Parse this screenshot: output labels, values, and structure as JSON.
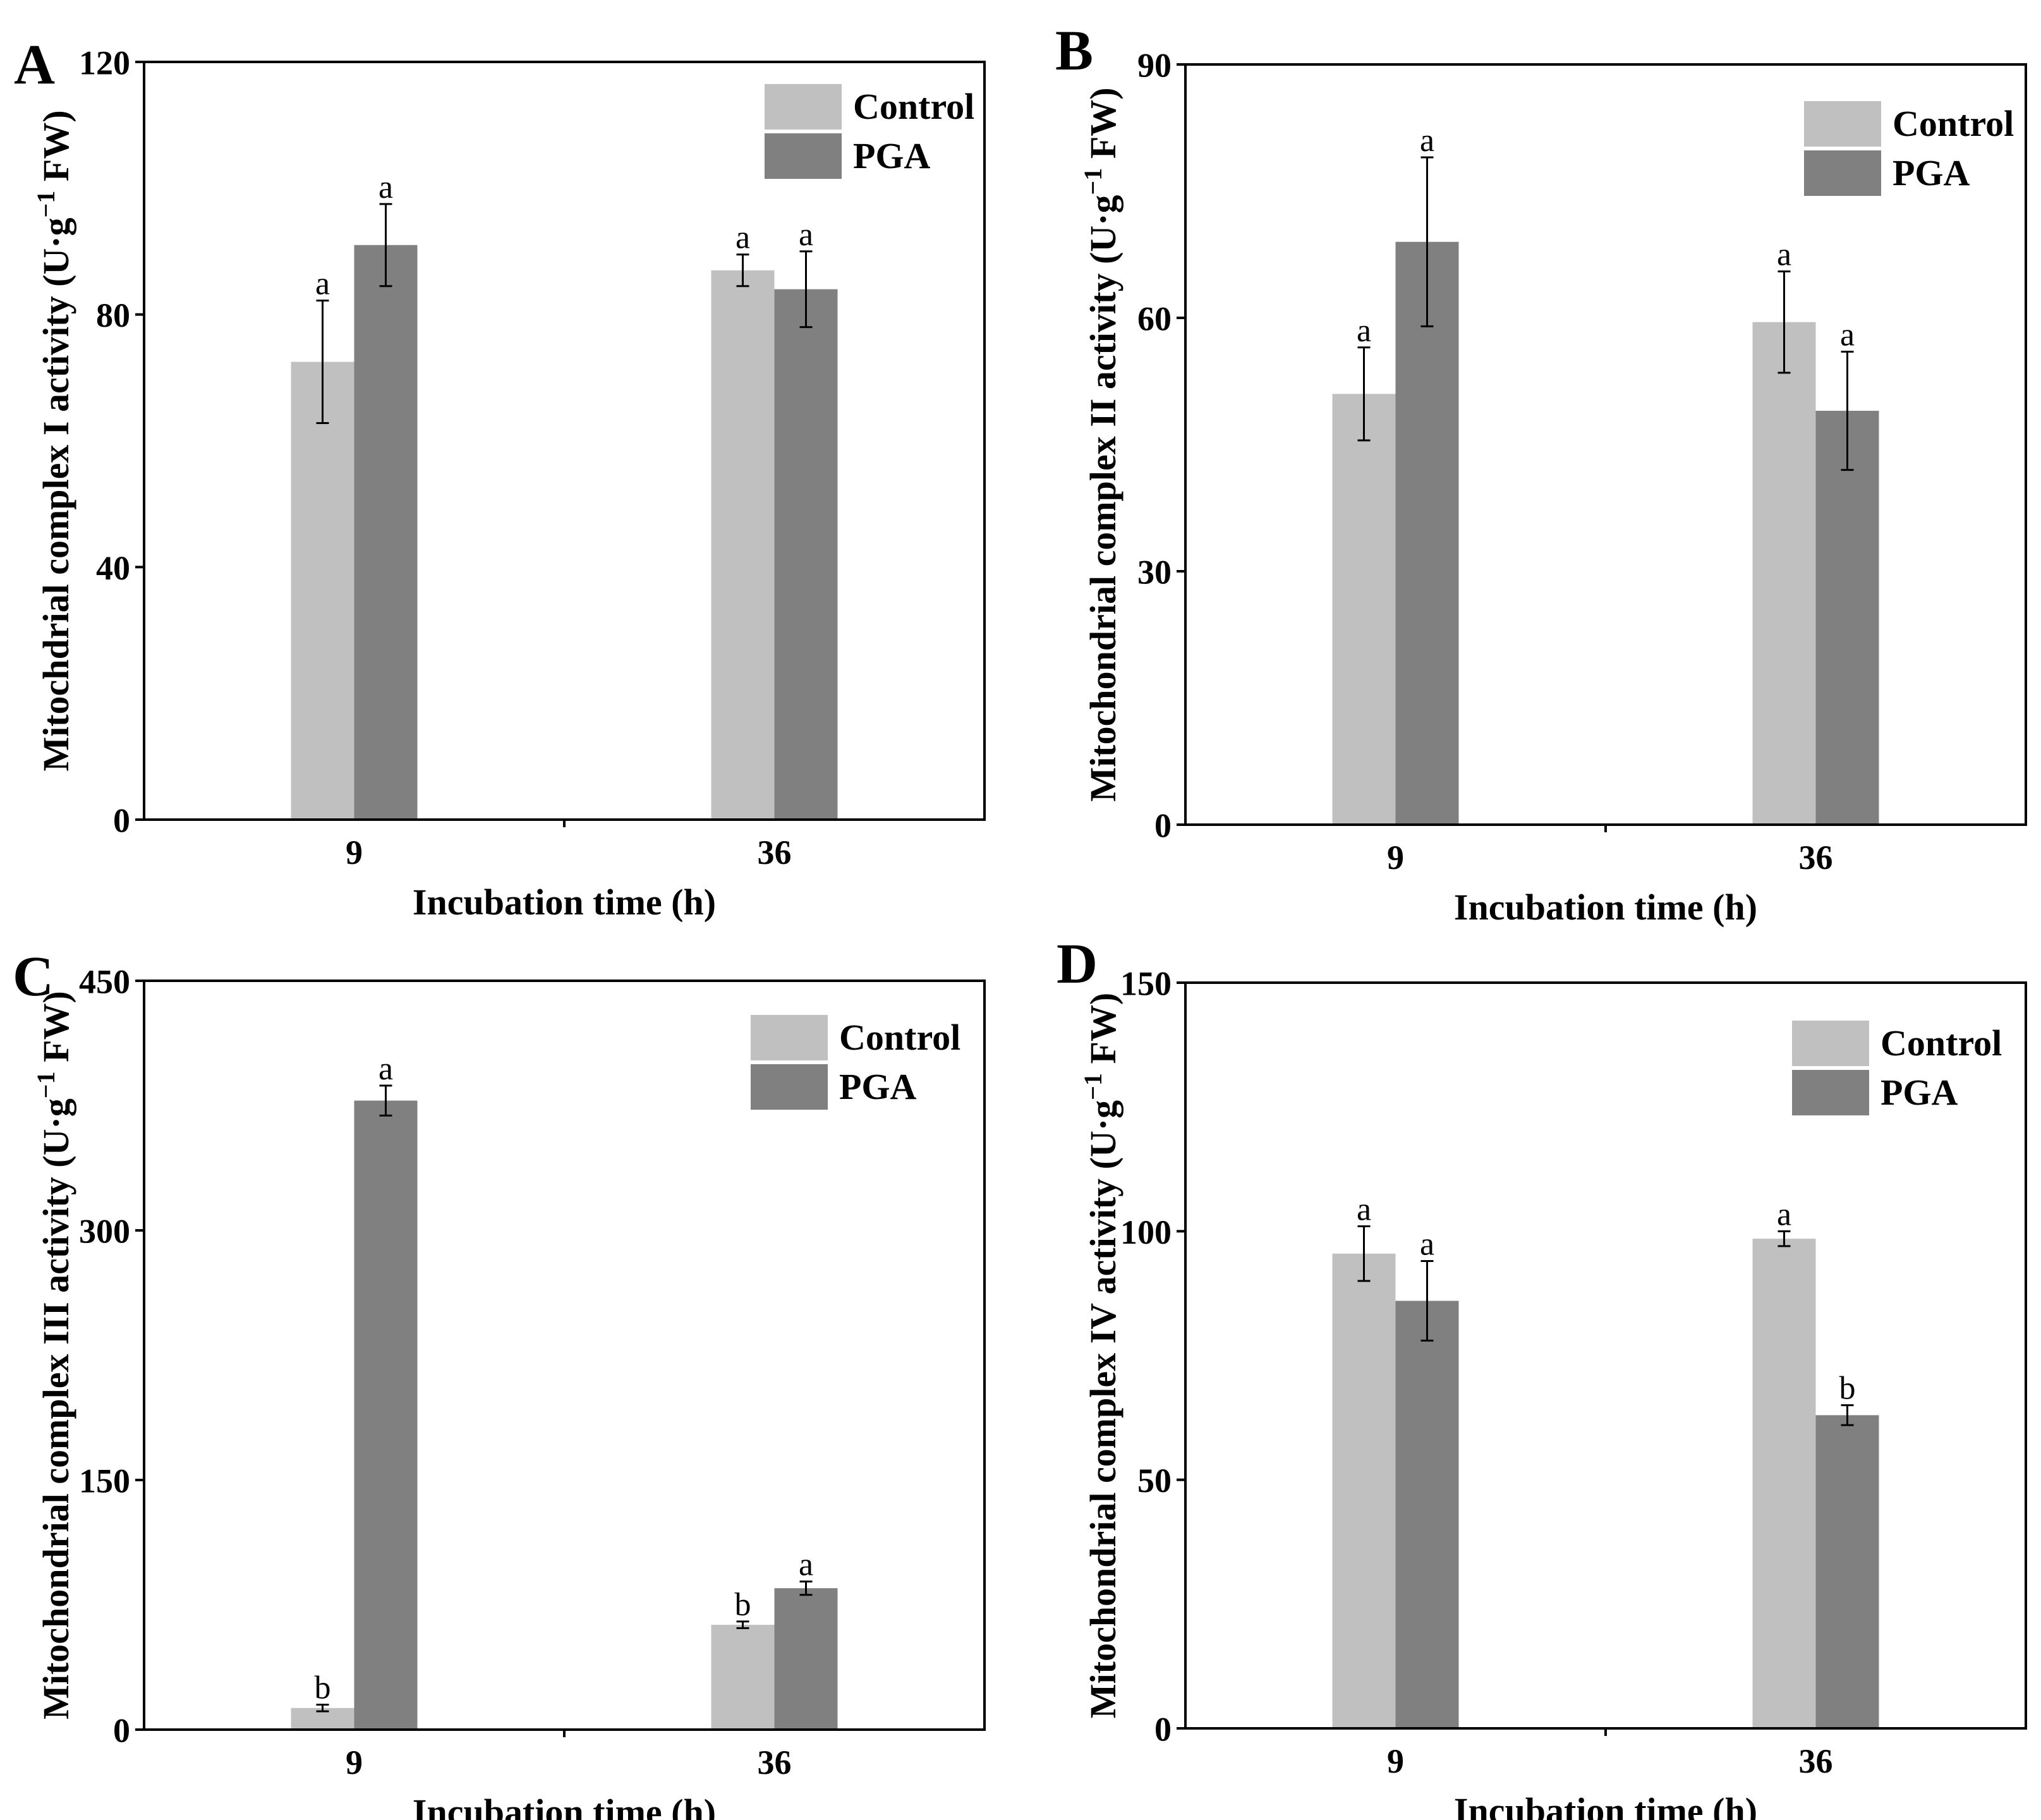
{
  "figure": {
    "colors": {
      "control": "#c0c0c0",
      "pga": "#808080",
      "axis": "#000000"
    }
  },
  "chart_data": [
    {
      "type": "bar",
      "panel": "A",
      "categories": [
        "9",
        "36"
      ],
      "series": [
        {
          "name": "Control",
          "values": [
            72.5,
            87
          ],
          "errors": [
            9.7,
            2.5
          ],
          "letters": [
            "a",
            "a"
          ]
        },
        {
          "name": "PGA",
          "values": [
            91,
            84
          ],
          "errors": [
            6.5,
            6
          ],
          "letters": [
            "a",
            "a"
          ]
        }
      ],
      "xlabel": "Incubation time (h)",
      "ylabel_main": "Mitochdrial complex I activity (U·g",
      "ylabel_sup": "−1",
      "ylabel_end": " FW)",
      "ylim": [
        0,
        120
      ],
      "yticks": [
        0,
        40,
        80,
        120
      ],
      "legend": [
        "Control",
        "PGA"
      ]
    },
    {
      "type": "bar",
      "panel": "B",
      "categories": [
        "9",
        "36"
      ],
      "series": [
        {
          "name": "Control",
          "values": [
            51,
            59.5
          ],
          "errors": [
            5.5,
            6
          ],
          "letters": [
            "a",
            "a"
          ]
        },
        {
          "name": "PGA",
          "values": [
            69,
            49
          ],
          "errors": [
            10,
            7
          ],
          "letters": [
            "a",
            "a"
          ]
        }
      ],
      "xlabel": "Incubation time (h)",
      "ylabel_main": "Mitochondrial complex II activity (U·g",
      "ylabel_sup": "−1",
      "ylabel_end": " FW)",
      "ylim": [
        0,
        90
      ],
      "yticks": [
        0,
        30,
        60,
        90
      ],
      "legend": [
        "Control",
        "PGA"
      ]
    },
    {
      "type": "bar",
      "panel": "C",
      "categories": [
        "9",
        "36"
      ],
      "series": [
        {
          "name": "Control",
          "values": [
            13,
            63
          ],
          "errors": [
            2,
            2
          ],
          "letters": [
            "b",
            "b"
          ]
        },
        {
          "name": "PGA",
          "values": [
            378,
            85
          ],
          "errors": [
            9,
            4
          ],
          "letters": [
            "a",
            "a"
          ]
        }
      ],
      "xlabel": "Incubation time (h)",
      "ylabel_main": "Mitochondrial complex III activity (U·g",
      "ylabel_sup": "−1",
      "ylabel_end": " FW)",
      "ylim": [
        0,
        450
      ],
      "yticks": [
        0,
        150,
        300,
        450
      ],
      "legend": [
        "Control",
        "PGA"
      ]
    },
    {
      "type": "bar",
      "panel": "D",
      "categories": [
        "9",
        "36"
      ],
      "series": [
        {
          "name": "Control",
          "values": [
            95.5,
            98.5
          ],
          "errors": [
            5.5,
            1.5
          ],
          "letters": [
            "a",
            "a"
          ]
        },
        {
          "name": "PGA",
          "values": [
            86,
            63
          ],
          "errors": [
            8,
            2
          ],
          "letters": [
            "a",
            "b"
          ]
        }
      ],
      "xlabel": "Incubation time (h)",
      "ylabel_main": "Mitochondrial complex IV activity (U·g",
      "ylabel_sup": "−1",
      "ylabel_end": " FW)",
      "ylim": [
        0,
        150
      ],
      "yticks": [
        0,
        50,
        100,
        150
      ],
      "legend": [
        "Control",
        "PGA"
      ]
    }
  ]
}
